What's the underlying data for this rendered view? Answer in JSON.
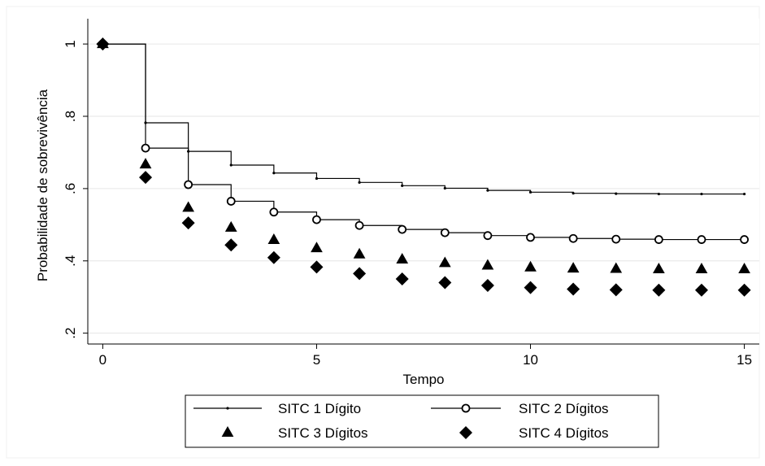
{
  "chart_data": {
    "type": "line",
    "xlabel": "Tempo",
    "ylabel": "Probabilidade de sobrevivência",
    "xlim": [
      -0.35,
      15.35
    ],
    "ylim": [
      0.17,
      1.07
    ],
    "xticks": [
      0,
      5,
      10,
      15
    ],
    "xtick_labels": [
      "0",
      "5",
      "10",
      "15"
    ],
    "yticks": [
      0.2,
      0.4,
      0.6,
      0.8,
      1
    ],
    "ytick_labels": [
      ".2",
      ".4",
      ".6",
      ".8",
      "1"
    ],
    "grid": "horizontal",
    "legend_position": "bottom",
    "colors": {
      "series": "#000000",
      "grid": "#e6e6e6",
      "axis": "#000000"
    },
    "x": [
      0,
      1,
      2,
      3,
      4,
      5,
      6,
      7,
      8,
      9,
      10,
      11,
      12,
      13,
      14,
      15
    ],
    "series": [
      {
        "name": "SITC 1 Dígito",
        "style": "step",
        "marker": "dot",
        "values": [
          1.0,
          0.782,
          0.703,
          0.665,
          0.643,
          0.628,
          0.617,
          0.608,
          0.601,
          0.595,
          0.59,
          0.587,
          0.586,
          0.585,
          0.585,
          0.585
        ]
      },
      {
        "name": "SITC 2 Dígitos",
        "style": "step",
        "marker": "circle",
        "values": [
          1.0,
          0.712,
          0.611,
          0.565,
          0.535,
          0.514,
          0.498,
          0.487,
          0.478,
          0.47,
          0.465,
          0.462,
          0.46,
          0.459,
          0.459,
          0.459
        ]
      },
      {
        "name": "SITC 3 Dígitos",
        "style": "markers",
        "marker": "triangle",
        "values": [
          1.0,
          0.667,
          0.547,
          0.492,
          0.458,
          0.435,
          0.418,
          0.404,
          0.394,
          0.387,
          0.382,
          0.379,
          0.378,
          0.377,
          0.377,
          0.377
        ]
      },
      {
        "name": "SITC 4 Dígitos",
        "style": "markers",
        "marker": "diamond",
        "values": [
          1.0,
          0.631,
          0.505,
          0.444,
          0.409,
          0.383,
          0.365,
          0.35,
          0.34,
          0.332,
          0.326,
          0.322,
          0.32,
          0.319,
          0.319,
          0.319
        ]
      }
    ]
  }
}
